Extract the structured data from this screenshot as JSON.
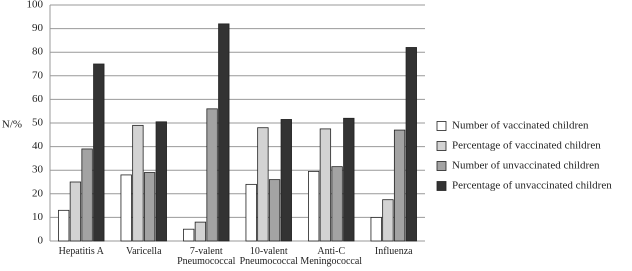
{
  "chart_data": {
    "type": "bar",
    "y_label": "N/%",
    "categories": [
      "Hepatitis A",
      "Varicella",
      "7-valent Pneumococcal",
      "10-valent Pneumococcal",
      "Anti-C Meningococcal",
      "Influenza"
    ],
    "series": [
      {
        "name": "Number of vaccinated children",
        "color": "#ffffff",
        "values": [
          13,
          28,
          5,
          24,
          29.5,
          10
        ]
      },
      {
        "name": "Percentage of vaccinated children",
        "color": "#d3d3d3",
        "values": [
          25,
          49,
          8,
          48,
          47.5,
          17.5
        ]
      },
      {
        "name": "Number of unvaccinated children",
        "color": "#a3a3a3",
        "values": [
          39,
          29,
          56,
          26,
          31.5,
          47
        ]
      },
      {
        "name": "Percentage of unvaccinated children",
        "color": "#333333",
        "values": [
          75,
          50.5,
          92,
          51.5,
          52,
          82
        ]
      }
    ],
    "ylim": [
      0,
      100
    ],
    "yticks": [
      0,
      10,
      20,
      30,
      40,
      50,
      60,
      70,
      80,
      90,
      100
    ],
    "grid": true,
    "legend": "right"
  }
}
